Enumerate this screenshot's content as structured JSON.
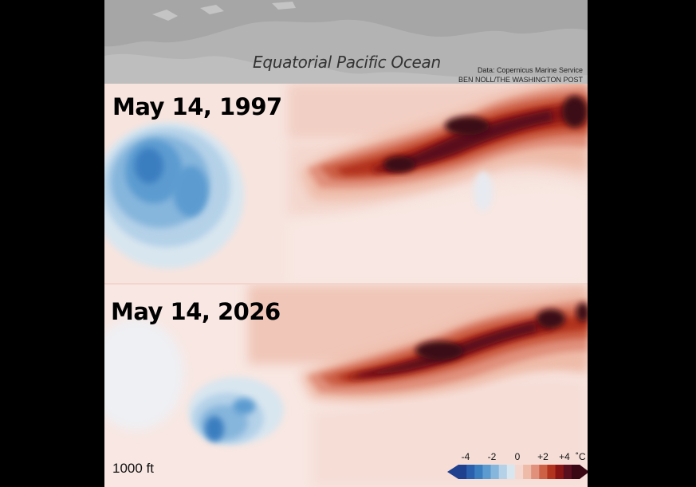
{
  "map": {
    "title": "Equatorial Pacific Ocean",
    "source": "Data: Copernicus Marine Service",
    "byline": "BEN NOLL/THE WASHINGTON POST",
    "panels": [
      {
        "date": "May 14, 1997"
      },
      {
        "date": "May 14, 2026"
      }
    ],
    "depth_label": "1000 ft",
    "legend": {
      "ticks": [
        "-4",
        "-2",
        "0",
        "+2",
        "+4"
      ],
      "tick_values": [
        -4,
        -2,
        0,
        2,
        4
      ],
      "unit": "˚C",
      "cold_colors": [
        "#1f3f8f",
        "#2a5fae",
        "#3a7ec0",
        "#5b9bd0",
        "#86b6dc",
        "#b4d1e8",
        "#d8e6ef"
      ],
      "warm_colors": [
        "#f4d8cf",
        "#eebba8",
        "#e0907b",
        "#cc6146",
        "#b2331e",
        "#8a1515",
        "#5a0f1f",
        "#3a0714"
      ]
    },
    "colors": {
      "land": "#b3b3b3",
      "land_dark": "#9a9a9a",
      "background": "#000000",
      "neutral_anomaly": "#f7e4de"
    }
  }
}
